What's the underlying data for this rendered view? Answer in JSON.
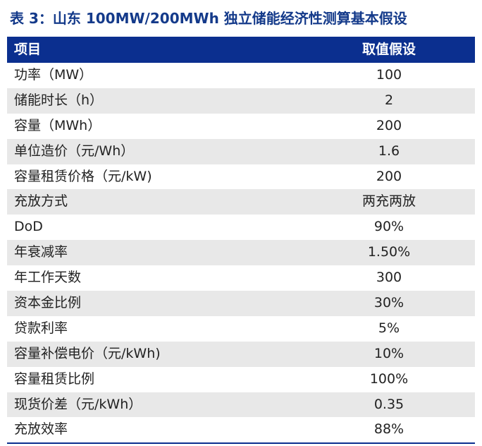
{
  "title": "表 3：山东 100MW/200MWh 独立储能经济性测算基本假设",
  "colors": {
    "title": "#143a8a",
    "header_bg": "#0b2f8f",
    "header_text": "#ffffff",
    "alt_row": "#e8e8e8"
  },
  "table": {
    "headers": [
      "项目",
      "取值假设"
    ],
    "rows": [
      {
        "item": "功率（MW）",
        "value": "100"
      },
      {
        "item": "储能时长（h）",
        "value": "2"
      },
      {
        "item": "容量（MWh）",
        "value": "200"
      },
      {
        "item": "单位造价（元/Wh）",
        "value": "1.6"
      },
      {
        "item": "容量租赁价格（元/kW)",
        "value": "200"
      },
      {
        "item": "充放方式",
        "value": "两充两放"
      },
      {
        "item": "DoD",
        "value": "90%"
      },
      {
        "item": "年衰减率",
        "value": "1.50%"
      },
      {
        "item": "年工作天数",
        "value": "300"
      },
      {
        "item": "资本金比例",
        "value": "30%"
      },
      {
        "item": "贷款利率",
        "value": "5%"
      },
      {
        "item": "容量补偿电价（元/kWh)",
        "value": "10%"
      },
      {
        "item": "容量租赁比例",
        "value": "100%"
      },
      {
        "item": "现货价差（元/kWh）",
        "value": "0.35"
      },
      {
        "item": "充放效率",
        "value": "88%"
      }
    ]
  }
}
